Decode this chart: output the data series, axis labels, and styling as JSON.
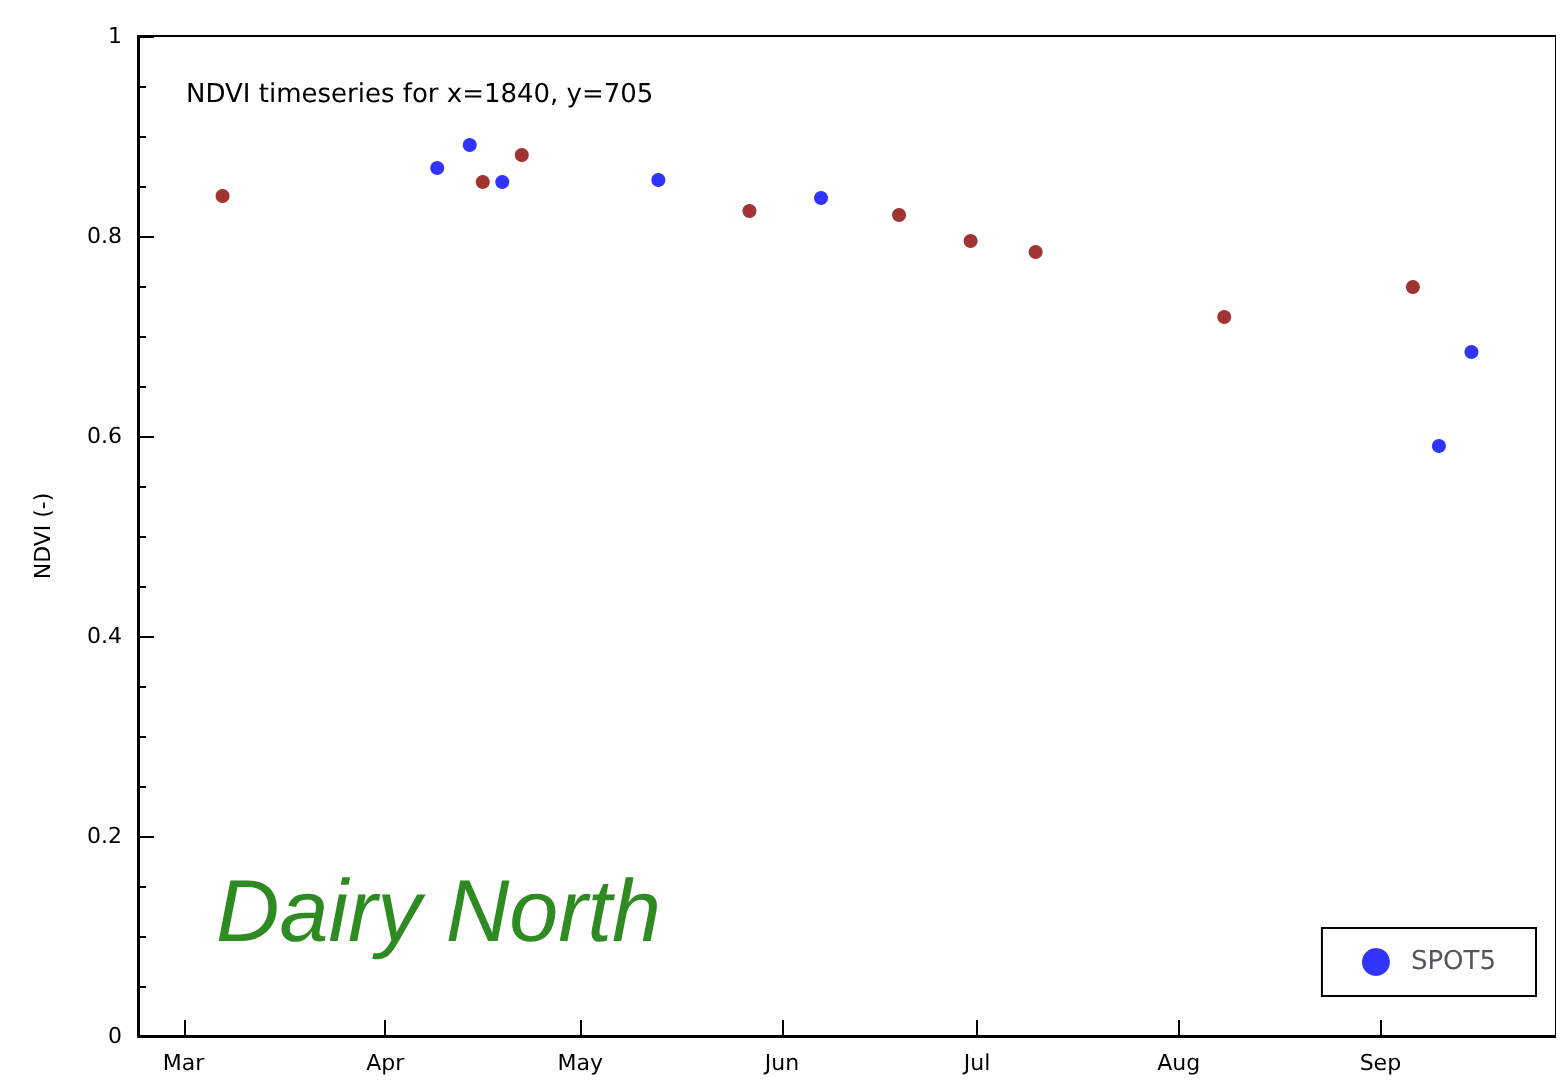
{
  "chart_data": {
    "type": "scatter",
    "title": "NDVI timeseries for x=1840, y=705",
    "ylabel": "NDVI (-)",
    "annotations": [
      "Dairy North"
    ],
    "xlim": [
      "--02-22",
      "--09-28"
    ],
    "xticks": [
      {
        "value": "--03-01",
        "label": "Mar"
      },
      {
        "value": "--04-01",
        "label": "Apr"
      },
      {
        "value": "--05-01",
        "label": "May"
      },
      {
        "value": "--06-01",
        "label": "Jun"
      },
      {
        "value": "--07-01",
        "label": "Jul"
      },
      {
        "value": "--08-01",
        "label": "Aug"
      },
      {
        "value": "--09-01",
        "label": "Sep"
      }
    ],
    "ylim": [
      0,
      1
    ],
    "yticks": [
      0,
      0.2,
      0.4,
      0.6,
      0.8,
      1
    ],
    "grid": false,
    "legend": "bottom right",
    "marker": "circle",
    "series": [
      {
        "color": "#8b0000",
        "x": [
          "--03-07",
          "--04-16",
          "--04-22",
          "--05-27",
          "--06-19",
          "--06-30",
          "--07-10",
          "--08-08",
          "--09-06"
        ],
        "values": [
          0.84,
          0.854,
          0.881,
          0.825,
          0.821,
          0.795,
          0.784,
          0.719,
          0.749
        ]
      },
      {
        "name": "SPOT5",
        "color": "#0000ff",
        "x": [
          "--04-09",
          "--04-14",
          "--04-19",
          "--05-13",
          "--06-07",
          "--09-10",
          "--09-15"
        ],
        "values": [
          0.868,
          0.891,
          0.854,
          0.856,
          0.838,
          0.59,
          0.684
        ]
      }
    ]
  }
}
